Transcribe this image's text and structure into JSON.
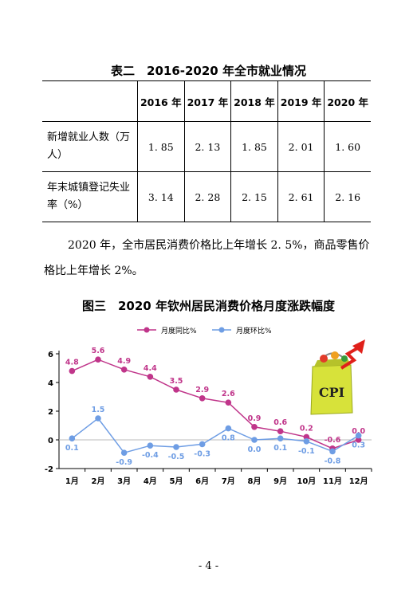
{
  "table_title": "表二　2016-2020 年全市就业情况",
  "table": {
    "headers": [
      "",
      "2016 年",
      "2017 年",
      "2018 年",
      "2019 年",
      "2020 年"
    ],
    "rows": [
      {
        "label": "新增就业人数（万人）",
        "values": [
          "1. 85",
          "2. 13",
          "1. 85",
          "2. 01",
          "1. 60"
        ]
      },
      {
        "label": "年末城镇登记失业率（%）",
        "values": [
          "3. 14",
          "2. 28",
          "2. 15",
          "2. 61",
          "2. 16"
        ]
      }
    ]
  },
  "paragraph": "2020 年，全市居民消费价格比上年增长 2. 5%，商品零售价格比上年增长 2%。",
  "figure_title": "图三　2020 年钦州居民消费价格月度涨跌幅度",
  "chart_data": {
    "type": "line",
    "categories": [
      "1月",
      "2月",
      "3月",
      "4月",
      "5月",
      "6月",
      "7月",
      "8月",
      "9月",
      "10月",
      "11月",
      "12月"
    ],
    "series": [
      {
        "name": "月度同比%",
        "color": "#c0358a",
        "values": [
          4.8,
          5.6,
          4.9,
          4.4,
          3.5,
          2.9,
          2.6,
          0.9,
          0.6,
          0.2,
          -0.6,
          0.0
        ],
        "labels": [
          "4.8",
          "5.6",
          "4.9",
          "4.4",
          "3.5",
          "2.9",
          "2.6",
          "0.9",
          "0.6",
          "0.2",
          "-0.6",
          "0.0"
        ]
      },
      {
        "name": "月度环比%",
        "color": "#6e9de4",
        "values": [
          0.1,
          1.5,
          -0.9,
          -0.4,
          -0.5,
          -0.3,
          0.8,
          0.0,
          0.1,
          -0.1,
          -0.8,
          0.3
        ],
        "labels": [
          "0.1",
          "1.5",
          "-0.9",
          "-0.4",
          "-0.5",
          "-0.3",
          "0.8",
          "0.0",
          "0.1",
          "-0.1",
          "-0.8",
          "0.3"
        ]
      }
    ],
    "yticks": [
      6,
      4,
      2,
      0,
      -2
    ],
    "ylim": [
      -2,
      6
    ],
    "legend": "top",
    "grid": false,
    "decoration_text": "CPI"
  },
  "page_number": "- 4 -"
}
